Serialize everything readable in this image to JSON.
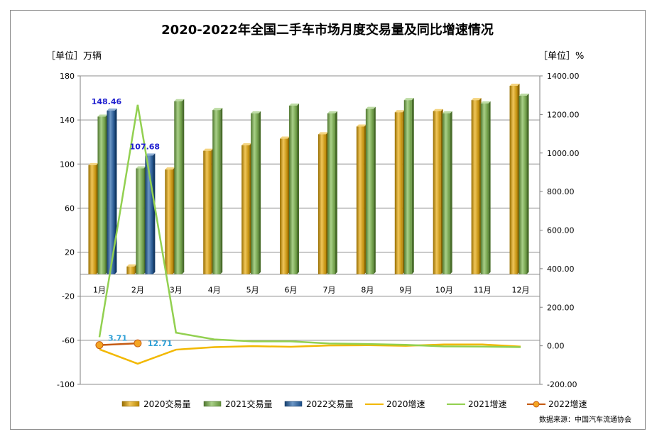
{
  "chart_data": {
    "type": "bar",
    "title": "2020-2022年全国二手车市场月度交易量及同比增速情况",
    "left_unit": "［单位］万辆",
    "right_unit": "［单位］%",
    "source": "数据来源：中国汽车流通协会",
    "categories": [
      "1月",
      "2月",
      "3月",
      "4月",
      "5月",
      "6月",
      "7月",
      "8月",
      "9月",
      "10月",
      "11月",
      "12月"
    ],
    "y_left": {
      "min": -100,
      "max": 180,
      "ticks": [
        "180",
        "140",
        "100",
        "60",
        "20",
        "-20",
        "-60",
        "-100"
      ]
    },
    "y_right": {
      "min": -200,
      "max": 1400,
      "ticks": [
        "1400.00",
        "1200.00",
        "1000.00",
        "800.00",
        "600.00",
        "400.00",
        "200.00",
        "0.00",
        "-200.00"
      ]
    },
    "bar_series": [
      {
        "name": "2020交易量",
        "color": "#E8A800",
        "values": [
          99,
          7,
          95,
          112,
          117,
          123,
          127,
          134,
          147,
          148,
          158,
          171
        ]
      },
      {
        "name": "2021交易量",
        "color": "#7AB648",
        "values": [
          143,
          96,
          157,
          149,
          146,
          153,
          146,
          150,
          158,
          146,
          155,
          162
        ]
      },
      {
        "name": "2022交易量",
        "color": "#1F5FA8",
        "values": [
          148.46,
          107.68,
          null,
          null,
          null,
          null,
          null,
          null,
          null,
          null,
          null,
          null
        ]
      }
    ],
    "line_series": [
      {
        "name": "2020增速",
        "color": "#F2B800",
        "values": [
          -18,
          -93,
          -20,
          -7,
          -2,
          -5,
          2,
          3,
          0,
          7,
          7,
          -4
        ]
      },
      {
        "name": "2021增速",
        "color": "#92D050",
        "values": [
          45,
          1250,
          68,
          33,
          23,
          23,
          12,
          9,
          5,
          -3,
          -4,
          -7
        ]
      },
      {
        "name": "2022增速",
        "color": "#C55A11",
        "values": [
          3.71,
          12.71,
          null,
          null,
          null,
          null,
          null,
          null,
          null,
          null,
          null,
          null
        ]
      }
    ],
    "data_labels": {
      "bar_2022": [
        "148.46",
        "107.68"
      ],
      "line_2022": [
        "3.71",
        "12.71"
      ]
    },
    "label_colors": {
      "bar_2022": "#1F1FCF",
      "line_2022": "#2E9FD6"
    },
    "grid": true,
    "legend_position": "bottom"
  }
}
